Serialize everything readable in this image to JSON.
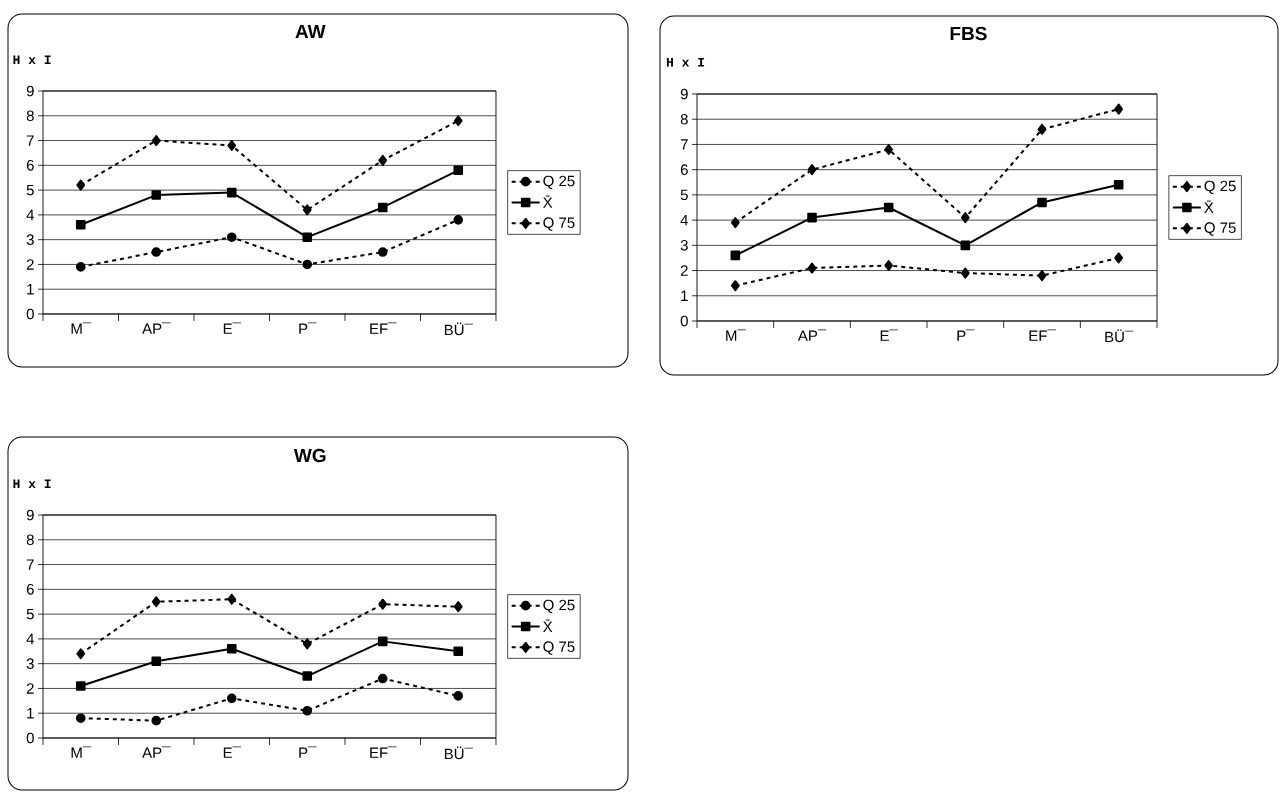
{
  "chart_data": [
    {
      "type": "line",
      "title": "AW",
      "ylabel": "H x I",
      "categories": [
        "M¯",
        "AP¯",
        "E¯",
        "P¯",
        "EF¯",
        "BÜ¯"
      ],
      "ylim": [
        0,
        9
      ],
      "yticks": [
        0,
        1,
        2,
        3,
        4,
        5,
        6,
        7,
        8,
        9
      ],
      "grid": "y",
      "legend": "right",
      "series": [
        {
          "name": "Q 25",
          "color": "#000000",
          "line_style": "dashed",
          "marker": "circle",
          "values": [
            1.9,
            2.5,
            3.1,
            2.0,
            2.5,
            3.8
          ]
        },
        {
          "name": "X̄",
          "color": "#000000",
          "line_style": "solid",
          "marker": "square",
          "values": [
            3.6,
            4.8,
            4.9,
            3.1,
            4.3,
            5.8
          ]
        },
        {
          "name": "Q 75",
          "color": "#000000",
          "line_style": "dashed",
          "marker": "diamond",
          "values": [
            5.2,
            7.0,
            6.8,
            4.2,
            6.2,
            7.8
          ]
        }
      ]
    },
    {
      "type": "line",
      "title": "FBS",
      "ylabel": "H x I",
      "categories": [
        "M¯",
        "AP¯",
        "E¯",
        "P¯",
        "EF¯",
        "BÜ¯"
      ],
      "ylim": [
        0,
        9
      ],
      "yticks": [
        0,
        1,
        2,
        3,
        4,
        5,
        6,
        7,
        8,
        9
      ],
      "grid": "y",
      "legend": "right",
      "series": [
        {
          "name": "Q 25",
          "color": "#000000",
          "line_style": "dashed",
          "marker": "diamond",
          "values": [
            1.4,
            2.1,
            2.2,
            1.9,
            1.8,
            2.5
          ]
        },
        {
          "name": "X̄",
          "color": "#000000",
          "line_style": "solid",
          "marker": "square",
          "values": [
            2.6,
            4.1,
            4.5,
            3.0,
            4.7,
            5.4
          ]
        },
        {
          "name": "Q 75",
          "color": "#000000",
          "line_style": "dashed",
          "marker": "diamond",
          "values": [
            3.9,
            6.0,
            6.8,
            4.1,
            7.6,
            8.4
          ]
        }
      ]
    },
    {
      "type": "line",
      "title": "WG",
      "ylabel": "H x I",
      "categories": [
        "M¯",
        "AP¯",
        "E¯",
        "P¯",
        "EF¯",
        "BÜ¯"
      ],
      "ylim": [
        0,
        9
      ],
      "yticks": [
        0,
        1,
        2,
        3,
        4,
        5,
        6,
        7,
        8,
        9
      ],
      "grid": "y",
      "legend": "right",
      "series": [
        {
          "name": "Q 25",
          "color": "#000000",
          "line_style": "dashed",
          "marker": "circle",
          "values": [
            0.8,
            0.7,
            1.6,
            1.1,
            2.4,
            1.7
          ]
        },
        {
          "name": "X̄",
          "color": "#000000",
          "line_style": "solid",
          "marker": "square",
          "values": [
            2.1,
            3.1,
            3.6,
            2.5,
            3.9,
            3.5
          ]
        },
        {
          "name": "Q 75",
          "color": "#000000",
          "line_style": "dashed",
          "marker": "diamond",
          "values": [
            3.4,
            5.5,
            5.6,
            3.8,
            5.4,
            5.3
          ]
        }
      ]
    }
  ]
}
